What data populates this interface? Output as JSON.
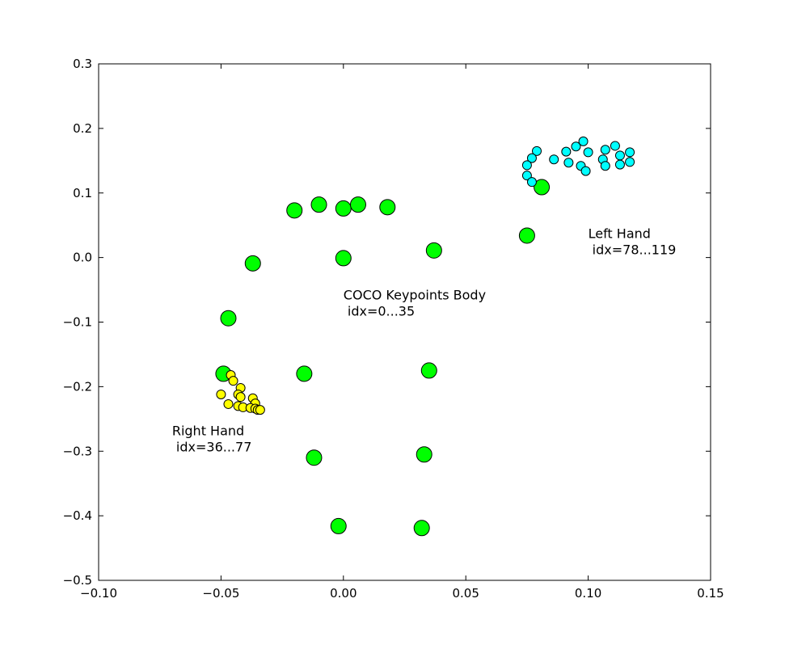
{
  "chart_data": {
    "type": "scatter",
    "title": "",
    "xlabel": "",
    "ylabel": "",
    "xlim": [
      -0.1,
      0.15
    ],
    "ylim": [
      -0.5,
      0.3
    ],
    "grid": false,
    "x_ticks": [
      {
        "value": -0.1,
        "label": "−0.10"
      },
      {
        "value": -0.05,
        "label": "−0.05"
      },
      {
        "value": 0.0,
        "label": "0.00"
      },
      {
        "value": 0.05,
        "label": "0.05"
      },
      {
        "value": 0.1,
        "label": "0.10"
      },
      {
        "value": 0.15,
        "label": "0.15"
      }
    ],
    "y_ticks": [
      {
        "value": 0.3,
        "label": "0.3"
      },
      {
        "value": 0.2,
        "label": "0.2"
      },
      {
        "value": 0.1,
        "label": "0.1"
      },
      {
        "value": 0.0,
        "label": "0.0"
      },
      {
        "value": -0.1,
        "label": "−0.1"
      },
      {
        "value": -0.2,
        "label": "−0.2"
      },
      {
        "value": -0.3,
        "label": "−0.3"
      },
      {
        "value": -0.4,
        "label": "−0.4"
      },
      {
        "value": -0.5,
        "label": "−0.5"
      }
    ],
    "series": [
      {
        "color": "#00ff00",
        "marker_size": "large",
        "points": [
          [
            -0.02,
            0.073
          ],
          [
            -0.01,
            0.082
          ],
          [
            0.0,
            0.076
          ],
          [
            0.006,
            0.082
          ],
          [
            0.018,
            0.078
          ],
          [
            0.0,
            -0.001
          ],
          [
            -0.037,
            -0.009
          ],
          [
            0.037,
            0.011
          ],
          [
            0.075,
            0.034
          ],
          [
            0.081,
            0.109
          ],
          [
            -0.047,
            -0.094
          ],
          [
            -0.049,
            -0.18
          ],
          [
            -0.016,
            -0.18
          ],
          [
            0.035,
            -0.175
          ],
          [
            -0.012,
            -0.31
          ],
          [
            0.033,
            -0.305
          ],
          [
            -0.002,
            -0.416
          ],
          [
            0.032,
            -0.419
          ]
        ]
      },
      {
        "color": "#ffff00",
        "marker_size": "small",
        "points": [
          [
            -0.046,
            -0.182
          ],
          [
            -0.045,
            -0.191
          ],
          [
            -0.042,
            -0.202
          ],
          [
            -0.05,
            -0.212
          ],
          [
            -0.043,
            -0.212
          ],
          [
            -0.042,
            -0.216
          ],
          [
            -0.037,
            -0.218
          ],
          [
            -0.036,
            -0.226
          ],
          [
            -0.047,
            -0.227
          ],
          [
            -0.043,
            -0.23
          ],
          [
            -0.041,
            -0.232
          ],
          [
            -0.038,
            -0.233
          ],
          [
            -0.036,
            -0.234
          ],
          [
            -0.035,
            -0.236
          ],
          [
            -0.034,
            -0.236
          ]
        ]
      },
      {
        "color": "#00ffff",
        "marker_size": "small",
        "points": [
          [
            0.079,
            0.165
          ],
          [
            0.077,
            0.154
          ],
          [
            0.075,
            0.143
          ],
          [
            0.075,
            0.127
          ],
          [
            0.077,
            0.117
          ],
          [
            0.086,
            0.152
          ],
          [
            0.091,
            0.164
          ],
          [
            0.095,
            0.172
          ],
          [
            0.098,
            0.18
          ],
          [
            0.1,
            0.163
          ],
          [
            0.092,
            0.147
          ],
          [
            0.097,
            0.142
          ],
          [
            0.099,
            0.134
          ],
          [
            0.107,
            0.167
          ],
          [
            0.111,
            0.173
          ],
          [
            0.113,
            0.158
          ],
          [
            0.117,
            0.163
          ],
          [
            0.106,
            0.152
          ],
          [
            0.107,
            0.142
          ],
          [
            0.113,
            0.144
          ],
          [
            0.117,
            0.148
          ]
        ]
      }
    ],
    "annotations": [
      {
        "x": 0.1,
        "y": 0.03,
        "lines": [
          "Left Hand",
          " idx=78...119"
        ]
      },
      {
        "x": 0.0,
        "y": -0.065,
        "lines": [
          "COCO Keypoints Body",
          " idx=0...35"
        ]
      },
      {
        "x": -0.07,
        "y": -0.275,
        "lines": [
          "Right Hand",
          " idx=36...77"
        ]
      }
    ]
  }
}
